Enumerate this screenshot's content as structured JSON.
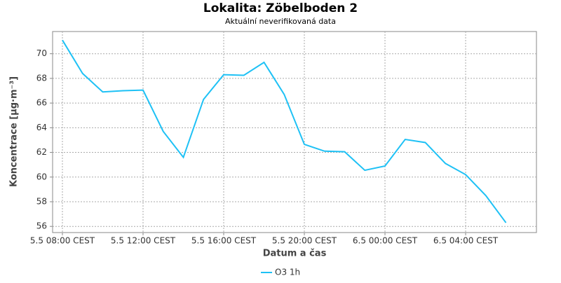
{
  "chart_data": {
    "type": "line",
    "title": "Lokalita: Zöbelboden 2",
    "subtitle": "Aktuální neverifikovaná data",
    "x_label": "Datum a čas",
    "y_label": "Koncentrace [µg·m⁻³]",
    "categories": [
      "5.5 08:00 CEST",
      null,
      null,
      null,
      "5.5 12:00 CEST",
      null,
      null,
      null,
      "5.5 16:00 CEST",
      null,
      null,
      null,
      "5.5 20:00 CEST",
      null,
      null,
      null,
      "6.5 00:00 CEST",
      null,
      null,
      null,
      "6.5 04:00 CEST",
      null,
      null
    ],
    "series": [
      {
        "name": "O3 1h",
        "color": "#1ec1f5",
        "values": [
          71.1,
          68.4,
          66.9,
          67.0,
          67.05,
          63.7,
          61.6,
          66.3,
          68.3,
          68.25,
          69.3,
          66.7,
          62.65,
          62.1,
          62.05,
          60.55,
          60.9,
          63.05,
          62.8,
          61.1,
          60.2,
          58.5,
          56.3
        ]
      }
    ],
    "ylim": [
      55.5,
      71.8
    ],
    "yticks": [
      56,
      58,
      60,
      62,
      64,
      66,
      68,
      70
    ],
    "grid": true
  }
}
